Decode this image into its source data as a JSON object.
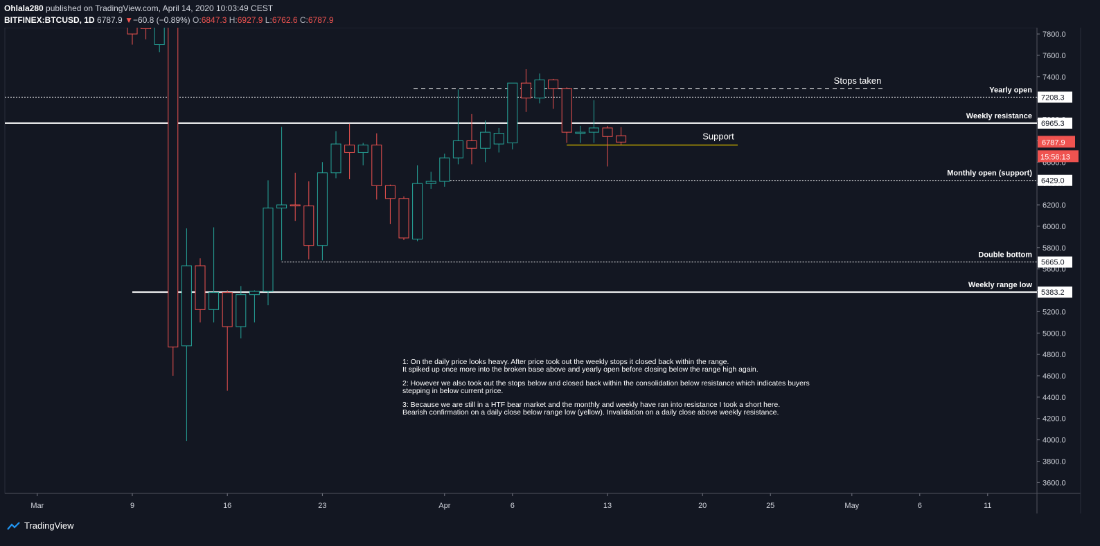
{
  "header": {
    "publisher": "Ohlala280",
    "published_text": "published on TradingView.com, April 14, 2020 10:03:49 CEST",
    "symbol": "BITFINEX:BTCUSD, 1D",
    "last": "6787.9",
    "change_arrow": "▼",
    "change": "−60.8 (−0.89%)",
    "o_label": "O:",
    "o_value": "6847.3",
    "h_label": "H:",
    "h_value": "6927.9",
    "l_label": "L:",
    "l_value": "6762.6",
    "c_label": "C:",
    "c_value": "6787.9"
  },
  "colors": {
    "background": "#131722",
    "up": "#26a69a",
    "down": "#ef5350",
    "grid_text": "#d1d4dc",
    "line_white": "#ffffff",
    "support_line": "#b8a000"
  },
  "chart_data": {
    "type": "candlestick",
    "symbol": "BITFINEX:BTCUSD",
    "interval": "1D",
    "ylim": [
      3500,
      7850
    ],
    "y_ticks": [
      3600,
      3800,
      4000,
      4200,
      4400,
      4600,
      4800,
      5000,
      5200,
      5400,
      5600,
      5800,
      6000,
      6200,
      6400,
      6600,
      6800,
      7000,
      7200,
      7400,
      7600,
      7800
    ],
    "y_tick_labels": [
      "3600.0",
      "3800.0",
      "4000.0",
      "4200.0",
      "4400.0",
      "4600.0",
      "4800.0",
      "5000.0",
      "5200.0",
      "5400.0",
      "5600.0",
      "5800.0",
      "6000.0",
      "6200.0",
      "6400.0",
      "6600.0",
      "6800.0",
      "7000.0",
      "7200.0",
      "7400.0",
      "7600.0",
      "7800.0"
    ],
    "x_ticks": [
      {
        "label": "Mar",
        "day": -7
      },
      {
        "label": "9",
        "day": 0
      },
      {
        "label": "16",
        "day": 7
      },
      {
        "label": "23",
        "day": 14
      },
      {
        "label": "Apr",
        "day": 23
      },
      {
        "label": "6",
        "day": 28
      },
      {
        "label": "13",
        "day": 35
      },
      {
        "label": "20",
        "day": 42
      },
      {
        "label": "25",
        "day": 47
      },
      {
        "label": "May",
        "day": 53
      },
      {
        "label": "6",
        "day": 58
      },
      {
        "label": "11",
        "day": 63
      }
    ],
    "candles": [
      {
        "day": 0,
        "o": 7950,
        "h": 8100,
        "l": 7700,
        "c": 7800
      },
      {
        "day": 1,
        "o": 7900,
        "h": 8100,
        "l": 7750,
        "c": 7850
      },
      {
        "day": 2,
        "o": 7700,
        "h": 8000,
        "l": 7630,
        "c": 7900
      },
      {
        "day": 3,
        "o": 7950,
        "h": 7950,
        "l": 4600,
        "c": 4870
      },
      {
        "day": 4,
        "o": 4880,
        "h": 5980,
        "l": 3990,
        "c": 5630
      },
      {
        "day": 5,
        "o": 5630,
        "h": 5700,
        "l": 5100,
        "c": 5220
      },
      {
        "day": 6,
        "o": 5220,
        "h": 5990,
        "l": 5100,
        "c": 5380
      },
      {
        "day": 7,
        "o": 5380,
        "h": 5400,
        "l": 4460,
        "c": 5060
      },
      {
        "day": 8,
        "o": 5060,
        "h": 5440,
        "l": 4950,
        "c": 5360
      },
      {
        "day": 9,
        "o": 5360,
        "h": 5400,
        "l": 5100,
        "c": 5390
      },
      {
        "day": 10,
        "o": 5390,
        "h": 6430,
        "l": 5260,
        "c": 6170
      },
      {
        "day": 11,
        "o": 6170,
        "h": 6930,
        "l": 5680,
        "c": 6200
      },
      {
        "day": 12,
        "o": 6200,
        "h": 6500,
        "l": 6050,
        "c": 6190
      },
      {
        "day": 13,
        "o": 6190,
        "h": 6420,
        "l": 5690,
        "c": 5820
      },
      {
        "day": 14,
        "o": 5820,
        "h": 6600,
        "l": 5680,
        "c": 6500
      },
      {
        "day": 15,
        "o": 6500,
        "h": 6890,
        "l": 6450,
        "c": 6770
      },
      {
        "day": 16,
        "o": 6760,
        "h": 6960,
        "l": 6440,
        "c": 6690
      },
      {
        "day": 17,
        "o": 6690,
        "h": 6780,
        "l": 6570,
        "c": 6760
      },
      {
        "day": 18,
        "o": 6760,
        "h": 6870,
        "l": 6250,
        "c": 6380
      },
      {
        "day": 19,
        "o": 6380,
        "h": 6390,
        "l": 6020,
        "c": 6260
      },
      {
        "day": 20,
        "o": 6260,
        "h": 6280,
        "l": 5870,
        "c": 5890
      },
      {
        "day": 21,
        "o": 5880,
        "h": 6570,
        "l": 5860,
        "c": 6400
      },
      {
        "day": 22,
        "o": 6400,
        "h": 6510,
        "l": 6350,
        "c": 6420
      },
      {
        "day": 23,
        "o": 6420,
        "h": 6680,
        "l": 6370,
        "c": 6640
      },
      {
        "day": 24,
        "o": 6640,
        "h": 7280,
        "l": 6580,
        "c": 6800
      },
      {
        "day": 25,
        "o": 6800,
        "h": 7050,
        "l": 6580,
        "c": 6730
      },
      {
        "day": 26,
        "o": 6730,
        "h": 6990,
        "l": 6600,
        "c": 6880
      },
      {
        "day": 27,
        "o": 6770,
        "h": 6920,
        "l": 6690,
        "c": 6870
      },
      {
        "day": 28,
        "o": 6780,
        "h": 7340,
        "l": 6720,
        "c": 7340
      },
      {
        "day": 29,
        "o": 7340,
        "h": 7470,
        "l": 7070,
        "c": 7200
      },
      {
        "day": 30,
        "o": 7200,
        "h": 7430,
        "l": 7150,
        "c": 7370
      },
      {
        "day": 31,
        "o": 7370,
        "h": 7380,
        "l": 7100,
        "c": 7290
      },
      {
        "day": 32,
        "o": 7290,
        "h": 7300,
        "l": 6780,
        "c": 6880
      },
      {
        "day": 33,
        "o": 6870,
        "h": 6940,
        "l": 6780,
        "c": 6880
      },
      {
        "day": 34,
        "o": 6880,
        "h": 7180,
        "l": 6780,
        "c": 6920
      },
      {
        "day": 35,
        "o": 6920,
        "h": 6940,
        "l": 6560,
        "c": 6840
      },
      {
        "day": 36,
        "o": 6847.3,
        "h": 6927.9,
        "l": 6762.6,
        "c": 6787.9
      }
    ]
  },
  "levels": [
    {
      "name": "Yearly open",
      "value": 7208.3,
      "label": "7208.3",
      "style": "dotted"
    },
    {
      "name": "Weekly resistance",
      "value": 6965.3,
      "label": "6965.3",
      "style": "solid"
    },
    {
      "name": "Monthly open (support)",
      "value": 6429.0,
      "label": "6429.0",
      "style": "dotted"
    },
    {
      "name": "Double bottom",
      "value": 5665.0,
      "label": "5665.0",
      "style": "dotted"
    },
    {
      "name": "Weekly range low",
      "value": 5383.2,
      "label": "5383.2",
      "style": "solid"
    }
  ],
  "annotations": {
    "stops_taken": "Stops taken",
    "support": "Support",
    "stops_line_value": 7290,
    "support_line_value": 6760
  },
  "price_badge": {
    "value": "6787.9",
    "countdown": "15:56:13"
  },
  "notes": [
    "1: On the daily price looks heavy. After price took out the weekly stops it closed back within the range.\nIt spiked up once more into the broken base above and yearly open before closing below the range high again.",
    "2: However we also took out the stops below and closed back within the consolidation below resistance which indicates buyers\nstepping in below current price.",
    "3: Because we are still in a HTF bear market and the monthly and weekly have ran into resistance I took a short here.\nBearish confirmation on a daily close below range low (yellow). Invalidation on a daily close above weekly resistance."
  ],
  "footer": {
    "brand": "TradingView"
  }
}
